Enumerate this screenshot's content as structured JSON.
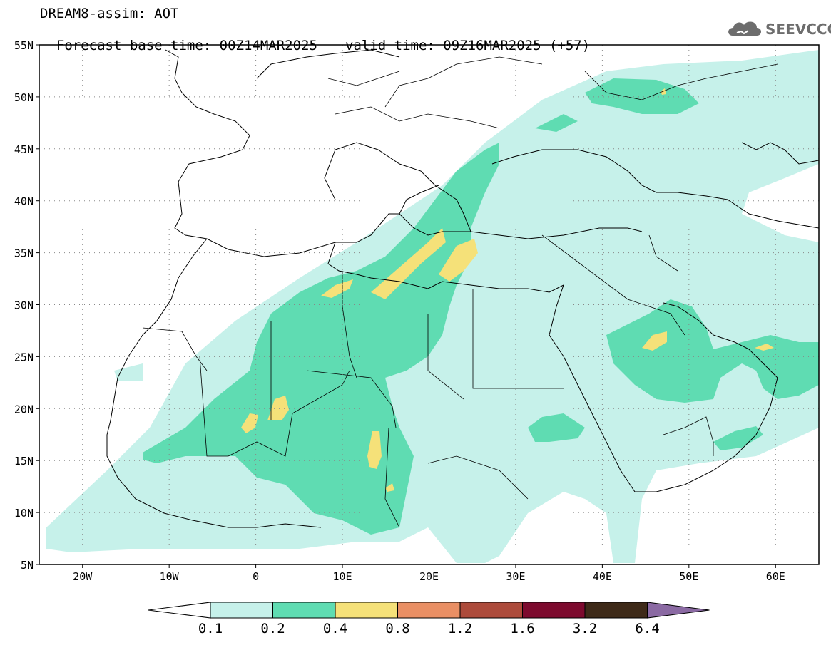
{
  "header": {
    "line1": "DREAM8-assim: AOT",
    "line2": "Forecast base time: 00Z14MAR2025",
    "valid": "valid time: 09Z16MAR2025 (+57)"
  },
  "logo": {
    "text": "SEEVCCC",
    "icon": "cloud-icon"
  },
  "map": {
    "lon_range": [
      -25,
      65
    ],
    "lat_range": [
      5,
      55
    ],
    "lat_labels": [
      "55N",
      "50N",
      "45N",
      "40N",
      "35N",
      "30N",
      "25N",
      "20N",
      "15N",
      "10N",
      "5N"
    ],
    "lon_labels": [
      "20W",
      "10W",
      "0",
      "10E",
      "20E",
      "30E",
      "40E",
      "50E",
      "60E"
    ],
    "gridlines": true
  },
  "colorbar": {
    "labels": [
      "0.1",
      "0.2",
      "0.4",
      "0.8",
      "1.2",
      "1.6",
      "3.2",
      "6.4"
    ],
    "colors": [
      "#ffffff",
      "#c6f1ea",
      "#5fdcb2",
      "#f5e179",
      "#e98f64",
      "#ad4b3b",
      "#7d0a2e",
      "#3e2a18",
      "#8b6aa3"
    ]
  }
}
